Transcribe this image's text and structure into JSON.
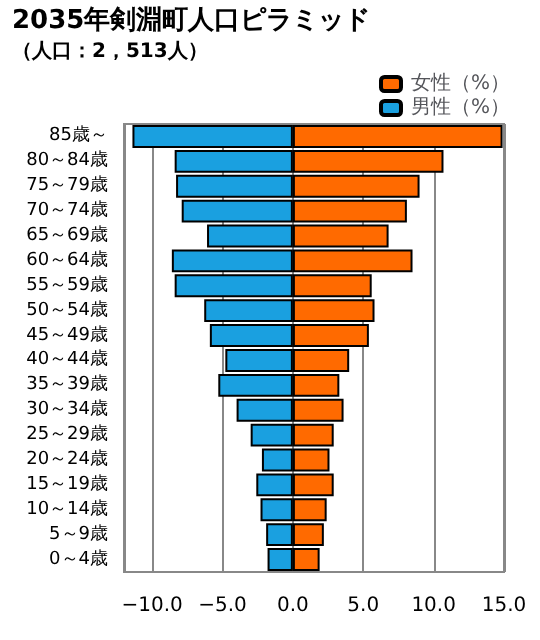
{
  "chart_data": {
    "type": "bar",
    "orientation": "horizontal",
    "title": "2035年剣淵町人口ピラミッド",
    "subtitle": "（人口：2，513人）",
    "categories": [
      "85歳～",
      "80～84歳",
      "75～79歳",
      "70～74歳",
      "65～69歳",
      "60～64歳",
      "55～59歳",
      "50～54歳",
      "45～49歳",
      "40～44歳",
      "35～39歳",
      "30～34歳",
      "25～29歳",
      "20～24歳",
      "15～19歳",
      "10～14歳",
      "5～9歳",
      "0～4歳"
    ],
    "series": [
      {
        "name": "女性（%）",
        "color": "#ff6a00",
        "values": [
          14.9,
          10.7,
          9.0,
          8.1,
          6.8,
          8.5,
          5.6,
          5.8,
          5.4,
          4.0,
          3.3,
          3.6,
          2.9,
          2.6,
          2.9,
          2.4,
          2.2,
          1.9
        ]
      },
      {
        "name": "男性（%）",
        "color": "#1aa0e0",
        "values": [
          -11.4,
          -8.4,
          -8.3,
          -7.9,
          -6.1,
          -8.6,
          -8.4,
          -6.3,
          -5.9,
          -4.8,
          -5.3,
          -4.0,
          -3.0,
          -2.2,
          -2.6,
          -2.3,
          -1.9,
          -1.8
        ]
      }
    ],
    "xlim": [
      -12,
      15
    ],
    "xticks": [
      {
        "value": -10,
        "label": "−10.0"
      },
      {
        "value": -5,
        "label": "−5.0"
      },
      {
        "value": 0,
        "label": "0.0"
      },
      {
        "value": 5,
        "label": "5.0"
      },
      {
        "value": 10,
        "label": "10.0"
      },
      {
        "value": 15,
        "label": "15.0"
      }
    ],
    "grid": "x",
    "legend": "top right",
    "stacked": true
  }
}
